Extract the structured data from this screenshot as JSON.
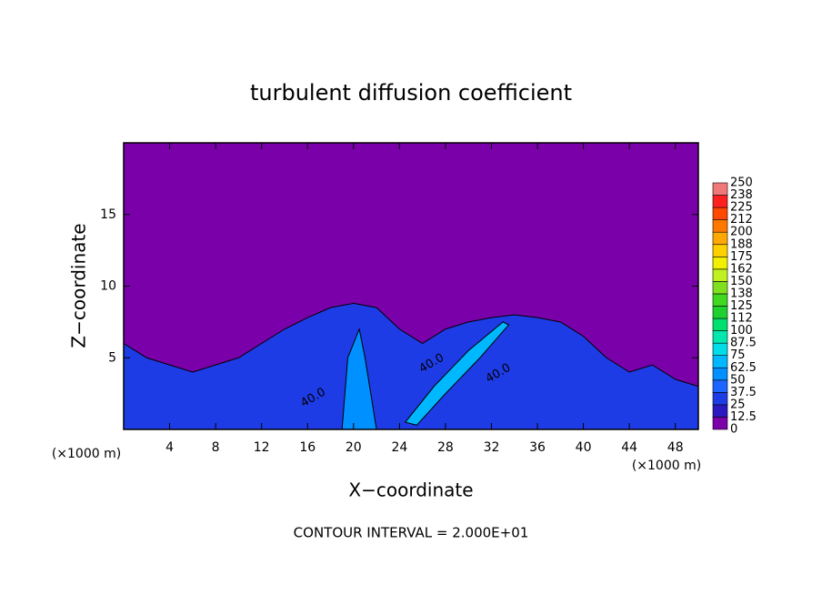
{
  "chart_data": {
    "type": "contour",
    "title": "turbulent diffusion coefficient",
    "xlabel": "X−coordinate",
    "ylabel": "Z−coordinate",
    "xunit": "(×1000 m)",
    "yunit": "(×1000 m)",
    "footer": "CONTOUR INTERVAL = 2.000E+01",
    "xlim": [
      0,
      50
    ],
    "ylim": [
      0,
      20
    ],
    "xticks": [
      4,
      8,
      12,
      16,
      20,
      24,
      28,
      32,
      36,
      40,
      44,
      48
    ],
    "yticks": [
      5,
      10,
      15
    ],
    "background_level": 0,
    "colorbar": {
      "ticks": [
        0,
        12.5,
        25,
        37.5,
        50,
        62.5,
        75,
        87.5,
        100,
        112,
        125,
        138,
        150,
        162,
        175,
        188,
        200,
        212,
        225,
        238,
        250
      ],
      "colors": [
        "#7a00aa",
        "#2c18c0",
        "#1e3ce6",
        "#1e64ff",
        "#0090ff",
        "#00b8ff",
        "#00dce8",
        "#00e8b0",
        "#00e070",
        "#20d030",
        "#40d820",
        "#80e020",
        "#c0f020",
        "#f0f000",
        "#ffd000",
        "#ffa800",
        "#ff7800",
        "#ff4800",
        "#ff2020",
        "#f07878"
      ]
    },
    "regions": [
      {
        "level": 25,
        "x": [
          0,
          2,
          4,
          6,
          8,
          10,
          12,
          14,
          16,
          18,
          20,
          22,
          24,
          26,
          28,
          30,
          32,
          34,
          36,
          38,
          40,
          42,
          44,
          46,
          48,
          50,
          50,
          0
        ],
        "y": [
          6,
          5,
          4.5,
          4,
          4.5,
          5,
          6,
          7,
          7.8,
          8.5,
          8.8,
          8.5,
          7,
          6,
          7,
          7.5,
          7.8,
          8,
          7.8,
          7.5,
          6.5,
          5,
          4,
          4.5,
          3.5,
          3,
          0,
          0
        ]
      },
      {
        "level": 50,
        "x": [
          19,
          19.5,
          20.5,
          21,
          22
        ],
        "y": [
          0,
          5,
          7,
          5,
          0
        ]
      },
      {
        "level": 62.5,
        "x": [
          24.5,
          27,
          30,
          33,
          33.5,
          31,
          28,
          25.5
        ],
        "y": [
          0.5,
          3,
          5.5,
          7.5,
          7.3,
          5,
          2.5,
          0.3
        ]
      }
    ],
    "contour_labels": [
      {
        "value": 40,
        "label": "40.0",
        "x": 16.5,
        "y": 2.2
      },
      {
        "value": 40,
        "label": "40.0",
        "x": 26.8,
        "y": 4.6
      },
      {
        "value": 40,
        "label": "40.0",
        "x": 32.6,
        "y": 3.9
      }
    ]
  }
}
